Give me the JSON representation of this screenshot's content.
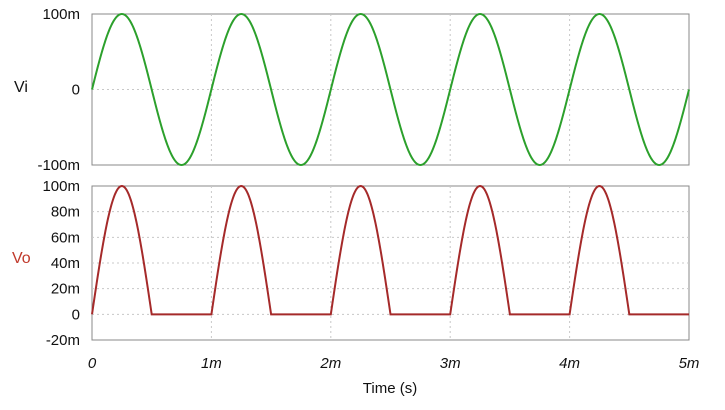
{
  "chart_data": [
    {
      "type": "line",
      "ylabel": "Vi",
      "xlim": [
        0,
        0.005
      ],
      "ylim": [
        -0.1,
        0.1
      ],
      "yticks": [
        -0.1,
        0,
        0.1
      ],
      "ytick_labels": [
        "-100m",
        "0",
        "100m"
      ],
      "grid": true,
      "series": [
        {
          "color": "#2ca02c",
          "function": "sine",
          "amplitude": 0.1,
          "frequency_hz": 1000,
          "phase_deg": 0,
          "x_start": 0,
          "x_end": 0.005
        }
      ]
    },
    {
      "type": "line",
      "ylabel": "Vo",
      "xlabel": "Time (s)",
      "xlim": [
        0,
        0.005
      ],
      "ylim": [
        -0.02,
        0.1
      ],
      "yticks": [
        -0.02,
        0,
        0.02,
        0.04,
        0.06,
        0.08,
        0.1
      ],
      "ytick_labels": [
        "-20m",
        "0",
        "20m",
        "40m",
        "60m",
        "80m",
        "100m"
      ],
      "xticks": [
        0,
        0.001,
        0.002,
        0.003,
        0.004,
        0.005
      ],
      "xtick_labels": [
        "0",
        "1m",
        "2m",
        "3m",
        "4m",
        "5m"
      ],
      "grid": true,
      "series": [
        {
          "color": "#a52a2a",
          "function": "clipped_sine",
          "amplitude": 0.1,
          "frequency_hz": 1000,
          "phase_deg": 0,
          "clip_below": 0,
          "x_start": 0,
          "x_end": 0.005
        }
      ]
    }
  ],
  "colors": {
    "axis_text": "#111111",
    "grid": "#c8c8c8",
    "frame": "#888888",
    "vi_label": "#111111",
    "vo_label": "#c0392b"
  }
}
